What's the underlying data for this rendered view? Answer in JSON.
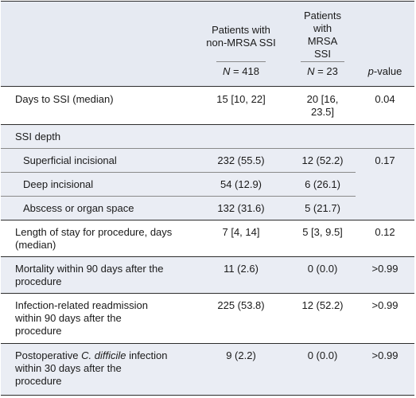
{
  "table": {
    "header": {
      "col2_title": "Patients with non-MRSA SSI",
      "col3_title": "Patients with MRSA SSI",
      "col2_n_label": "N",
      "col2_n_value": " = 418",
      "col3_n_label": "N",
      "col3_n_value": " = 23",
      "pvalue_italic": "p",
      "pvalue_rest": "-value"
    },
    "rows": {
      "days": {
        "label": "Days to SSI (median)",
        "non_mrsa": "15 [10, 22]",
        "mrsa_line1": "20 [16,",
        "mrsa_line2": "23.5]",
        "p": "0.04"
      },
      "depth": {
        "label": "SSI depth",
        "p": "0.17",
        "superficial": {
          "label": "Superficial incisional",
          "non_mrsa": "232 (55.5)",
          "mrsa": "12 (52.2)"
        },
        "deep": {
          "label": "Deep incisional",
          "non_mrsa": "54 (12.9)",
          "mrsa": "6 (26.1)"
        },
        "abscess": {
          "label": "Abscess or organ space",
          "non_mrsa": "132 (31.6)",
          "mrsa": "5 (21.7)"
        }
      },
      "los": {
        "label_line1": "Length of stay for procedure, days",
        "label_line2": "(median)",
        "non_mrsa": "7 [4, 14]",
        "mrsa": "5 [3, 9.5]",
        "p": "0.12"
      },
      "mortality": {
        "label_line1": "Mortality within 90 days after the",
        "label_line2": "procedure",
        "non_mrsa": "11 (2.6)",
        "mrsa": "0 (0.0)",
        "p": ">0.99"
      },
      "readmission": {
        "label_line1": "Infection-related readmission",
        "label_line2": "within 90 days after the",
        "label_line3": "procedure",
        "non_mrsa": "225 (53.8)",
        "mrsa": "12 (52.2)",
        "p": ">0.99"
      },
      "cdiff": {
        "label_pre": "Postoperative ",
        "label_italic": "C. difficile",
        "label_post": " infection",
        "label_line2": "within 30 days after the",
        "label_line3": "procedure",
        "non_mrsa": "9 (2.2)",
        "mrsa": "0 (0.0)",
        "p": ">0.99"
      }
    }
  }
}
